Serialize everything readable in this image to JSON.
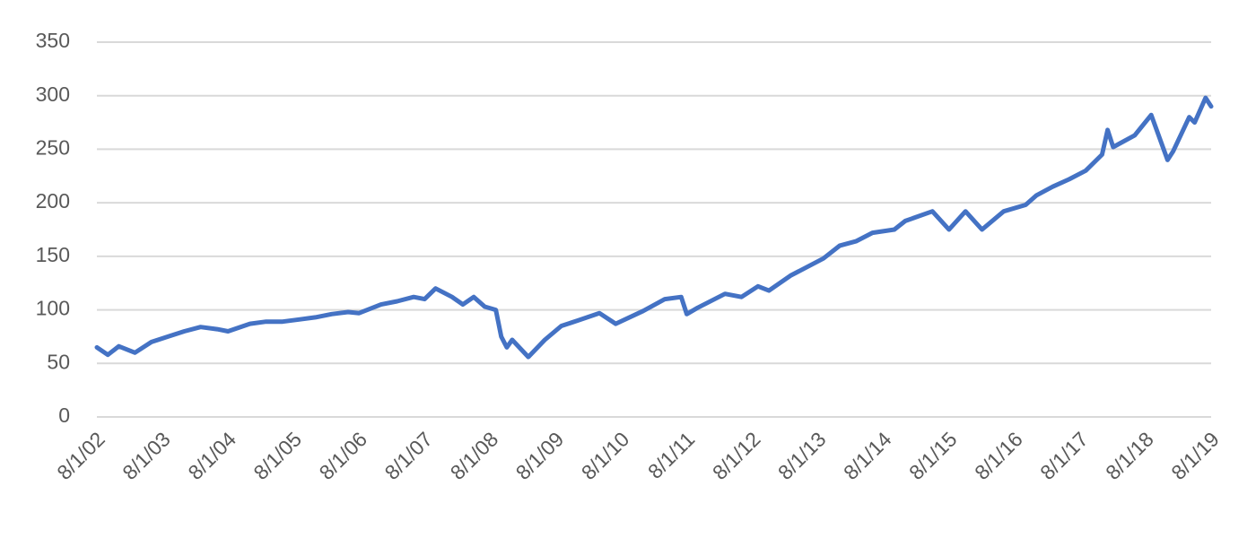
{
  "chart_data": {
    "type": "line",
    "x": [
      "2002-08-01",
      "2002-10-01",
      "2002-12-01",
      "2003-03-01",
      "2003-06-01",
      "2003-09-01",
      "2003-12-01",
      "2004-03-01",
      "2004-06-01",
      "2004-08-01",
      "2004-12-01",
      "2005-03-01",
      "2005-06-01",
      "2005-09-01",
      "2005-12-01",
      "2006-03-01",
      "2006-06-01",
      "2006-08-01",
      "2006-12-01",
      "2007-03-01",
      "2007-06-01",
      "2007-08-01",
      "2007-10-01",
      "2008-01-01",
      "2008-03-01",
      "2008-05-01",
      "2008-07-01",
      "2008-09-01",
      "2008-10-01",
      "2008-11-01",
      "2008-12-01",
      "2009-03-01",
      "2009-06-01",
      "2009-09-01",
      "2009-12-01",
      "2010-04-01",
      "2010-07-01",
      "2010-12-01",
      "2011-04-01",
      "2011-07-01",
      "2011-08-01",
      "2011-10-01",
      "2012-03-01",
      "2012-06-01",
      "2012-09-01",
      "2012-11-01",
      "2013-03-01",
      "2013-06-01",
      "2013-09-01",
      "2013-12-01",
      "2014-03-01",
      "2014-06-01",
      "2014-10-01",
      "2014-12-01",
      "2015-05-01",
      "2015-08-01",
      "2015-11-01",
      "2016-02-01",
      "2016-06-01",
      "2016-10-01",
      "2016-12-01",
      "2017-03-01",
      "2017-06-01",
      "2017-09-01",
      "2017-12-01",
      "2018-01-01",
      "2018-02-01",
      "2018-06-01",
      "2018-09-01",
      "2018-12-01",
      "2019-01-01",
      "2019-04-01",
      "2019-05-01",
      "2019-07-01",
      "2019-08-01"
    ],
    "values": [
      65,
      58,
      66,
      60,
      70,
      75,
      80,
      84,
      82,
      80,
      87,
      89,
      89,
      91,
      93,
      96,
      98,
      97,
      105,
      108,
      112,
      110,
      120,
      112,
      105,
      112,
      103,
      100,
      75,
      65,
      72,
      56,
      72,
      85,
      90,
      97,
      87,
      99,
      110,
      112,
      96,
      102,
      115,
      112,
      122,
      118,
      132,
      140,
      148,
      160,
      164,
      172,
      175,
      183,
      192,
      175,
      192,
      175,
      192,
      198,
      207,
      215,
      222,
      230,
      245,
      268,
      252,
      263,
      282,
      240,
      248,
      280,
      275,
      298,
      290
    ],
    "color": "#4472c4",
    "xlim": [
      "2002-08-01",
      "2019-08-01"
    ],
    "xticks": [
      {
        "value": "2002-08-01",
        "label": "8/1/02"
      },
      {
        "value": "2003-08-01",
        "label": "8/1/03"
      },
      {
        "value": "2004-08-01",
        "label": "8/1/04"
      },
      {
        "value": "2005-08-01",
        "label": "8/1/05"
      },
      {
        "value": "2006-08-01",
        "label": "8/1/06"
      },
      {
        "value": "2007-08-01",
        "label": "8/1/07"
      },
      {
        "value": "2008-08-01",
        "label": "8/1/08"
      },
      {
        "value": "2009-08-01",
        "label": "8/1/09"
      },
      {
        "value": "2010-08-01",
        "label": "8/1/10"
      },
      {
        "value": "2011-08-01",
        "label": "8/1/11"
      },
      {
        "value": "2012-08-01",
        "label": "8/1/12"
      },
      {
        "value": "2013-08-01",
        "label": "8/1/13"
      },
      {
        "value": "2014-08-01",
        "label": "8/1/14"
      },
      {
        "value": "2015-08-01",
        "label": "8/1/15"
      },
      {
        "value": "2016-08-01",
        "label": "8/1/16"
      },
      {
        "value": "2017-08-01",
        "label": "8/1/17"
      },
      {
        "value": "2018-08-01",
        "label": "8/1/18"
      },
      {
        "value": "2019-08-01",
        "label": "8/1/19"
      }
    ],
    "ylim": [
      0,
      350
    ],
    "yticks": [
      0,
      50,
      100,
      150,
      200,
      250,
      300,
      350
    ],
    "grid": true
  }
}
